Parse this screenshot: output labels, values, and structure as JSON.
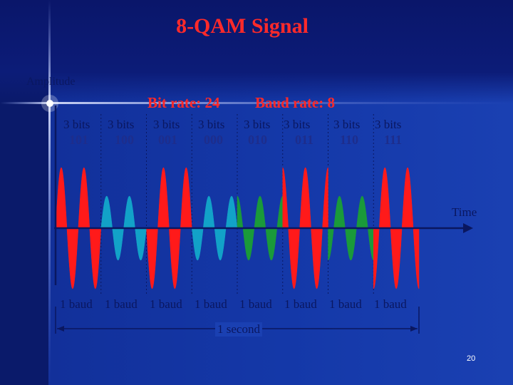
{
  "title": "8-QAM Signal",
  "axes": {
    "y_label": "Amplitude",
    "x_label": "Time"
  },
  "rates": {
    "bit_rate": "Bit rate: 24",
    "baud_rate": "Baud rate: 8"
  },
  "symbols": [
    {
      "bits_label": "3 bits",
      "bits": "101",
      "amplitude": "high",
      "phase_deg": 0,
      "color": "#ff1a1a"
    },
    {
      "bits_label": "3 bits",
      "bits": "100",
      "amplitude": "low",
      "phase_deg": 0,
      "color": "#12a2c8"
    },
    {
      "bits_label": "3 bits",
      "bits": "001",
      "amplitude": "high",
      "phase_deg": 180,
      "color": "#ff1a1a"
    },
    {
      "bits_label": "3 bits",
      "bits": "000",
      "amplitude": "low",
      "phase_deg": 180,
      "color": "#12a2c8"
    },
    {
      "bits_label": "3 bits",
      "bits": "010",
      "amplitude": "low",
      "phase_deg": 90,
      "color": "#1a9a3a"
    },
    {
      "bits_label": "3 bits",
      "bits": "011",
      "amplitude": "high",
      "phase_deg": 90,
      "color": "#ff1a1a"
    },
    {
      "bits_label": "3 bits",
      "bits": "110",
      "amplitude": "low",
      "phase_deg": 270,
      "color": "#1a9a3a"
    },
    {
      "bits_label": "3 bits",
      "bits": "111",
      "amplitude": "high",
      "phase_deg": 270,
      "color": "#ff1a1a"
    }
  ],
  "baud_label": "1 baud",
  "duration_label": "1 second",
  "page_number": "20",
  "colors": {
    "title": "#ff2a2a",
    "axis": "#0a1760",
    "high_amplitude": "#ff1a1a",
    "low_amplitude_a": "#12a2c8",
    "low_amplitude_b": "#1a9a3a"
  }
}
